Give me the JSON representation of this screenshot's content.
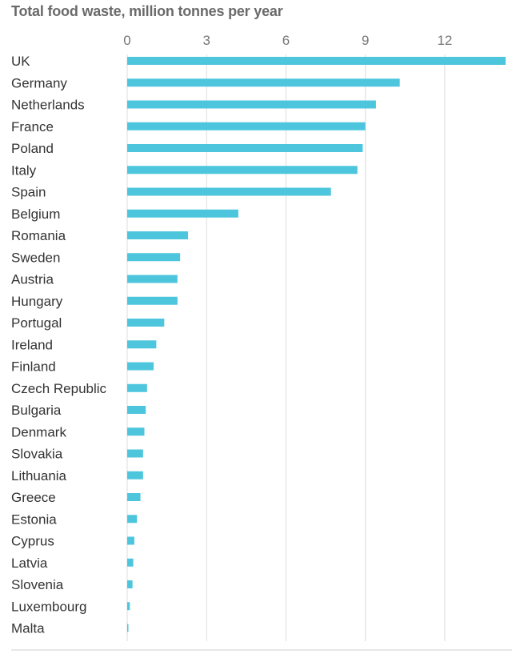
{
  "chart_data": {
    "type": "bar",
    "orientation": "horizontal",
    "title": "Total food waste, million tonnes per year",
    "xlabel": "",
    "ylabel": "",
    "xlim": [
      0,
      14.3
    ],
    "x_ticks": [
      "0",
      "3",
      "6",
      "9",
      "12"
    ],
    "grid": true,
    "bar_color": "#4dc6dd",
    "categories": [
      "UK",
      "Germany",
      "Netherlands",
      "France",
      "Poland",
      "Italy",
      "Spain",
      "Belgium",
      "Romania",
      "Sweden",
      "Austria",
      "Hungary",
      "Portugal",
      "Ireland",
      "Finland",
      "Czech Republic",
      "Bulgaria",
      "Denmark",
      "Slovakia",
      "Lithuania",
      "Greece",
      "Estonia",
      "Cyprus",
      "Latvia",
      "Slovenia",
      "Luxembourg",
      "Malta"
    ],
    "values": [
      14.3,
      10.3,
      9.4,
      9.0,
      8.9,
      8.7,
      7.7,
      4.2,
      2.3,
      2.0,
      1.9,
      1.9,
      1.4,
      1.1,
      1.0,
      0.75,
      0.7,
      0.65,
      0.6,
      0.6,
      0.5,
      0.37,
      0.27,
      0.23,
      0.2,
      0.1,
      0.03
    ]
  }
}
